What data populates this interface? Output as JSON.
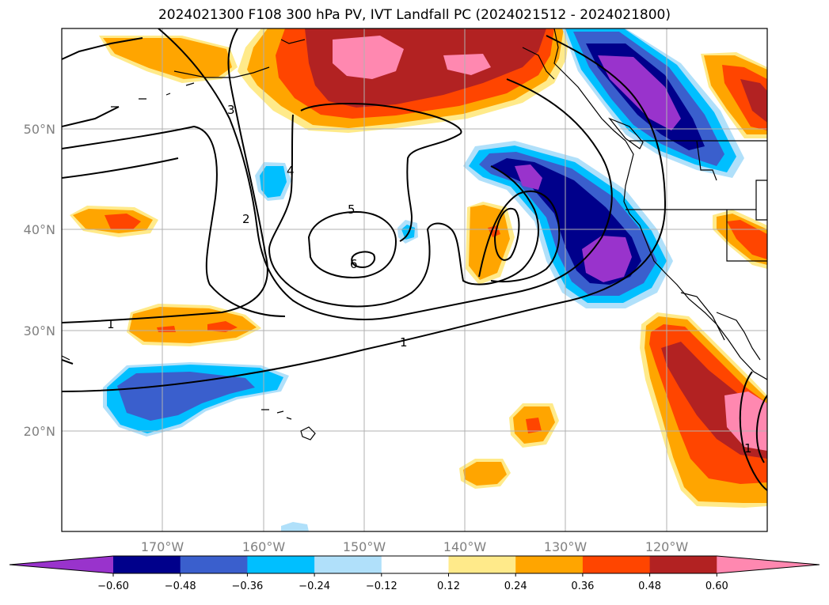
{
  "title": "2024021300 F108 300 hPa PV, IVT Landfall PC (2024021512 - 2024021800)",
  "map": {
    "lon_range": [
      -180,
      -110
    ],
    "lat_range": [
      10,
      60
    ],
    "lat_ticks": [
      {
        "value": 50,
        "label": "50°N"
      },
      {
        "value": 40,
        "label": "40°N"
      },
      {
        "value": 30,
        "label": "30°N"
      },
      {
        "value": 20,
        "label": "20°N"
      }
    ],
    "lon_ticks": [
      {
        "value": -170,
        "label": "170°W"
      },
      {
        "value": -160,
        "label": "160°W"
      },
      {
        "value": -150,
        "label": "150°W"
      },
      {
        "value": -140,
        "label": "140°W"
      },
      {
        "value": -130,
        "label": "130°W"
      },
      {
        "value": -120,
        "label": "120°W"
      }
    ],
    "grid": true,
    "contour_labels": [
      "1",
      "1",
      "2",
      "3",
      "4",
      "5",
      "6",
      "1"
    ]
  },
  "colorbar": {
    "levels": [
      "-0.60",
      "-0.48",
      "-0.36",
      "-0.24",
      "-0.12",
      "0.12",
      "0.24",
      "0.36",
      "0.48",
      "0.60"
    ],
    "display_levels": [
      "−0.60",
      "−0.48",
      "−0.36",
      "−0.24",
      "−0.12",
      "0.12",
      "0.24",
      "0.36",
      "0.48",
      "0.60"
    ],
    "colors": [
      "#9933cc",
      "#00008b",
      "#3a5fcd",
      "#00bfff",
      "#b0e0fa",
      "#ffffff",
      "#ffea8a",
      "#ffa500",
      "#ff4500",
      "#b22222",
      "#ff88b0"
    ]
  }
}
